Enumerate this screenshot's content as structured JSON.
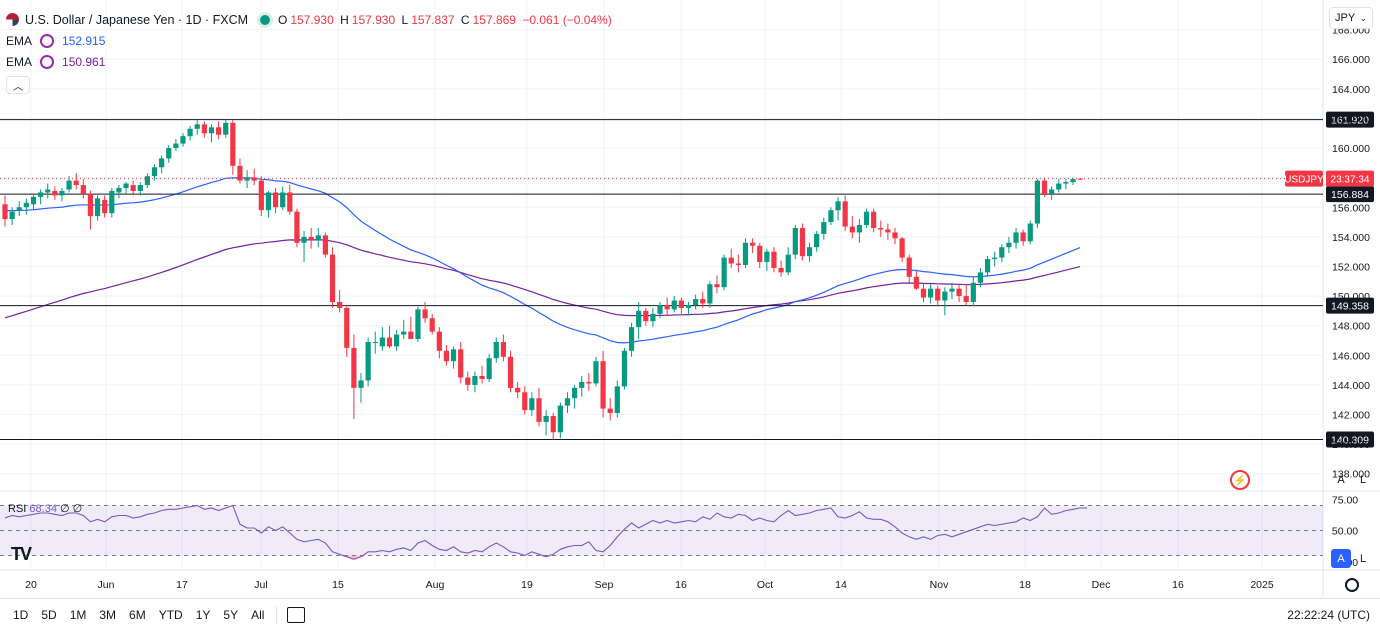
{
  "legend": {
    "symbol": "U.S. Dollar / Japanese Yen · 1D · FXCM",
    "ohlc": {
      "o_label": "O",
      "o": "157.930",
      "h_label": "H",
      "h": "157.930",
      "l_label": "L",
      "l": "157.837",
      "c_label": "C",
      "c": "157.869",
      "change": "−0.061 (−0.04%)"
    },
    "ema1": {
      "label": "EMA",
      "value": "152.915"
    },
    "ema2": {
      "label": "EMA",
      "value": "150.961"
    }
  },
  "toolbar": {
    "currency": "JPY",
    "auto": "A",
    "log": "L"
  },
  "rsi_legend": {
    "label": "RSI",
    "value": "68.34",
    "extra1": "∅",
    "extra2": "∅"
  },
  "bottom": {
    "ranges": [
      "1D",
      "5D",
      "1M",
      "3M",
      "6M",
      "YTD",
      "1Y",
      "5Y",
      "All"
    ],
    "clock": "22:22:24 (UTC)"
  },
  "colors": {
    "up": "#089981",
    "down": "#f23645",
    "ema_fast": "#2962ff",
    "ema_slow": "#7b1fa2",
    "rsi": "#7e57c2"
  },
  "chart_data": {
    "type": "candlestick",
    "y_axis": {
      "ylim": [
        136.9,
        170.0
      ],
      "ticks": [
        138.0,
        140.0,
        142.0,
        144.0,
        146.0,
        148.0,
        150.0,
        152.0,
        154.0,
        156.0,
        158.0,
        160.0,
        162.0,
        164.0,
        166.0,
        168.0
      ]
    },
    "x_ticks": [
      "20",
      "Jun",
      "17",
      "Jul",
      "15",
      "Aug",
      "19",
      "Sep",
      "16",
      "Oct",
      "14",
      "Nov",
      "18",
      "Dec",
      "16",
      "2025"
    ],
    "price_lines": [
      161.92,
      156.884,
      149.358,
      140.309
    ],
    "price_labels": [
      "161.920",
      "156.884",
      "149.358",
      "140.309"
    ],
    "last_label": {
      "symbol": "USDJPY",
      "countdown": "23:37:34",
      "value": 157.869
    },
    "ohlc": [
      [
        156.2,
        156.8,
        154.7,
        155.2
      ],
      [
        155.2,
        156.0,
        154.8,
        155.7
      ],
      [
        155.8,
        156.4,
        155.4,
        156.0
      ],
      [
        156.0,
        156.6,
        155.5,
        156.3
      ],
      [
        156.2,
        156.9,
        155.8,
        156.7
      ],
      [
        156.7,
        157.2,
        156.2,
        157.0
      ],
      [
        157.0,
        157.6,
        156.6,
        157.2
      ],
      [
        157.1,
        157.4,
        156.5,
        156.8
      ],
      [
        156.8,
        157.3,
        156.4,
        157.1
      ],
      [
        157.2,
        158.1,
        157.0,
        157.8
      ],
      [
        157.8,
        158.3,
        157.2,
        157.5
      ],
      [
        157.5,
        157.9,
        156.6,
        156.9
      ],
      [
        156.9,
        157.1,
        154.5,
        155.4
      ],
      [
        155.4,
        156.8,
        155.1,
        156.6
      ],
      [
        156.5,
        156.8,
        155.3,
        155.6
      ],
      [
        155.6,
        157.3,
        155.3,
        157.1
      ],
      [
        157.0,
        157.5,
        156.6,
        157.3
      ],
      [
        157.3,
        157.7,
        156.9,
        157.6
      ],
      [
        157.5,
        157.8,
        156.8,
        157.1
      ],
      [
        157.1,
        157.7,
        156.8,
        157.5
      ],
      [
        157.5,
        158.3,
        157.3,
        158.1
      ],
      [
        158.1,
        158.9,
        157.8,
        158.7
      ],
      [
        158.7,
        159.5,
        158.3,
        159.3
      ],
      [
        159.3,
        160.2,
        159.0,
        160.0
      ],
      [
        160.0,
        160.6,
        159.8,
        160.3
      ],
      [
        160.3,
        161.0,
        160.1,
        160.8
      ],
      [
        160.8,
        161.5,
        160.5,
        161.3
      ],
      [
        161.3,
        161.9,
        160.9,
        161.6
      ],
      [
        161.6,
        161.8,
        160.7,
        161.0
      ],
      [
        161.0,
        161.6,
        160.4,
        161.4
      ],
      [
        161.4,
        161.8,
        160.6,
        160.9
      ],
      [
        160.9,
        161.9,
        160.7,
        161.7
      ],
      [
        161.7,
        161.9,
        158.2,
        158.8
      ],
      [
        158.8,
        159.3,
        157.6,
        157.8
      ],
      [
        157.8,
        158.5,
        157.3,
        158.0
      ],
      [
        158.0,
        158.6,
        157.5,
        157.8
      ],
      [
        157.8,
        158.1,
        155.4,
        155.8
      ],
      [
        155.8,
        157.1,
        155.3,
        157.0
      ],
      [
        157.0,
        157.3,
        155.6,
        156.0
      ],
      [
        156.0,
        157.4,
        155.8,
        157.0
      ],
      [
        157.0,
        157.5,
        155.5,
        155.7
      ],
      [
        155.7,
        155.9,
        153.3,
        153.6
      ],
      [
        153.6,
        154.4,
        152.3,
        154.0
      ],
      [
        154.0,
        154.6,
        153.2,
        153.8
      ],
      [
        153.8,
        154.6,
        153.3,
        154.1
      ],
      [
        154.1,
        154.3,
        152.6,
        152.8
      ],
      [
        152.8,
        153.3,
        149.2,
        149.6
      ],
      [
        149.6,
        150.4,
        148.9,
        149.2
      ],
      [
        149.2,
        149.4,
        145.9,
        146.5
      ],
      [
        146.5,
        147.4,
        141.7,
        143.8
      ],
      [
        143.8,
        144.8,
        142.8,
        144.3
      ],
      [
        144.3,
        147.2,
        143.9,
        146.9
      ],
      [
        146.9,
        147.6,
        146.1,
        146.9
      ],
      [
        146.6,
        147.9,
        146.3,
        147.2
      ],
      [
        147.2,
        148.0,
        146.5,
        146.6
      ],
      [
        146.6,
        147.7,
        146.3,
        147.4
      ],
      [
        147.4,
        148.4,
        147.1,
        147.6
      ],
      [
        147.6,
        148.6,
        147.2,
        147.1
      ],
      [
        147.1,
        149.3,
        146.9,
        149.1
      ],
      [
        149.1,
        149.6,
        148.2,
        148.5
      ],
      [
        148.5,
        148.8,
        147.4,
        147.6
      ],
      [
        147.6,
        147.9,
        145.8,
        146.3
      ],
      [
        146.3,
        146.7,
        145.3,
        145.6
      ],
      [
        145.6,
        146.6,
        145.1,
        146.4
      ],
      [
        146.4,
        146.9,
        144.1,
        144.5
      ],
      [
        144.5,
        144.9,
        143.6,
        144.0
      ],
      [
        144.0,
        144.9,
        143.5,
        144.6
      ],
      [
        144.6,
        145.3,
        144.1,
        144.4
      ],
      [
        144.4,
        146.1,
        144.2,
        145.8
      ],
      [
        145.8,
        147.2,
        145.5,
        146.9
      ],
      [
        146.9,
        147.4,
        145.6,
        145.9
      ],
      [
        145.9,
        146.3,
        143.5,
        143.8
      ],
      [
        143.8,
        144.2,
        143.1,
        143.5
      ],
      [
        143.5,
        143.9,
        142.0,
        142.3
      ],
      [
        142.3,
        143.5,
        141.9,
        143.1
      ],
      [
        143.1,
        143.8,
        141.2,
        141.5
      ],
      [
        141.5,
        142.3,
        140.6,
        141.9
      ],
      [
        141.9,
        142.1,
        140.3,
        140.8
      ],
      [
        140.8,
        142.8,
        140.4,
        142.6
      ],
      [
        142.6,
        143.5,
        142.1,
        143.1
      ],
      [
        143.1,
        144.0,
        142.4,
        143.8
      ],
      [
        143.8,
        144.6,
        143.2,
        144.2
      ],
      [
        144.2,
        144.8,
        143.6,
        144.1
      ],
      [
        144.1,
        145.9,
        143.9,
        145.6
      ],
      [
        145.6,
        146.3,
        141.8,
        142.4
      ],
      [
        142.4,
        143.1,
        141.6,
        142.1
      ],
      [
        142.1,
        144.3,
        141.8,
        143.9
      ],
      [
        143.9,
        146.5,
        143.7,
        146.3
      ],
      [
        146.3,
        148.2,
        145.9,
        147.9
      ],
      [
        147.9,
        149.6,
        147.1,
        149.0
      ],
      [
        149.0,
        149.2,
        148.0,
        148.3
      ],
      [
        148.3,
        149.2,
        147.9,
        148.8
      ],
      [
        148.8,
        149.6,
        148.5,
        149.4
      ],
      [
        149.4,
        149.9,
        148.7,
        149.1
      ],
      [
        149.1,
        150.0,
        148.9,
        149.7
      ],
      [
        149.7,
        149.9,
        148.8,
        149.2
      ],
      [
        149.2,
        149.6,
        148.7,
        149.4
      ],
      [
        149.4,
        150.1,
        149.1,
        149.8
      ],
      [
        149.8,
        150.3,
        149.2,
        149.5
      ],
      [
        149.5,
        151.0,
        149.2,
        150.8
      ],
      [
        150.8,
        151.4,
        150.2,
        150.6
      ],
      [
        150.6,
        152.8,
        150.4,
        152.6
      ],
      [
        152.6,
        153.2,
        151.9,
        152.2
      ],
      [
        152.2,
        152.8,
        151.6,
        152.1
      ],
      [
        152.1,
        153.9,
        151.9,
        153.6
      ],
      [
        153.6,
        153.9,
        152.9,
        153.4
      ],
      [
        153.4,
        153.6,
        151.9,
        152.3
      ],
      [
        152.3,
        153.2,
        151.7,
        153.0
      ],
      [
        153.0,
        153.3,
        151.6,
        151.9
      ],
      [
        151.9,
        152.4,
        151.3,
        151.6
      ],
      [
        151.6,
        153.3,
        151.4,
        152.8
      ],
      [
        152.8,
        154.8,
        152.5,
        154.6
      ],
      [
        154.6,
        154.9,
        152.4,
        152.7
      ],
      [
        152.7,
        153.6,
        152.3,
        153.3
      ],
      [
        153.3,
        154.4,
        153.0,
        154.2
      ],
      [
        154.2,
        155.3,
        153.8,
        155.0
      ],
      [
        155.0,
        156.0,
        154.8,
        155.8
      ],
      [
        155.8,
        156.7,
        155.1,
        156.4
      ],
      [
        156.4,
        156.8,
        154.4,
        154.7
      ],
      [
        154.7,
        155.4,
        153.9,
        154.3
      ],
      [
        154.3,
        155.2,
        153.6,
        154.8
      ],
      [
        154.8,
        155.9,
        154.6,
        155.7
      ],
      [
        155.7,
        155.9,
        154.3,
        154.6
      ],
      [
        154.6,
        155.1,
        154.0,
        154.5
      ],
      [
        154.5,
        154.9,
        153.8,
        154.3
      ],
      [
        154.3,
        154.6,
        153.5,
        153.9
      ],
      [
        153.9,
        154.0,
        152.3,
        152.6
      ],
      [
        152.6,
        152.8,
        150.9,
        151.3
      ],
      [
        151.3,
        151.7,
        150.4,
        150.5
      ],
      [
        150.5,
        150.9,
        149.6,
        149.9
      ],
      [
        149.9,
        150.8,
        149.5,
        150.5
      ],
      [
        150.5,
        150.7,
        149.3,
        149.7
      ],
      [
        149.7,
        150.6,
        148.7,
        150.3
      ],
      [
        150.3,
        150.9,
        149.8,
        150.5
      ],
      [
        150.5,
        150.8,
        149.6,
        150.0
      ],
      [
        150.0,
        150.8,
        149.4,
        149.6
      ],
      [
        149.6,
        151.3,
        149.3,
        150.9
      ],
      [
        150.9,
        151.9,
        150.6,
        151.6
      ],
      [
        151.6,
        152.7,
        151.3,
        152.5
      ],
      [
        152.5,
        153.0,
        152.0,
        152.6
      ],
      [
        152.6,
        153.5,
        152.3,
        153.3
      ],
      [
        153.3,
        154.0,
        152.9,
        153.6
      ],
      [
        153.6,
        154.6,
        153.2,
        154.3
      ],
      [
        154.3,
        154.5,
        153.4,
        153.7
      ],
      [
        153.7,
        155.1,
        153.5,
        154.9
      ],
      [
        154.9,
        157.9,
        154.6,
        157.8
      ],
      [
        157.8,
        158.0,
        156.7,
        156.9
      ],
      [
        156.9,
        157.4,
        156.5,
        157.2
      ],
      [
        157.2,
        157.9,
        157.0,
        157.6
      ],
      [
        157.6,
        157.9,
        157.2,
        157.7
      ],
      [
        157.7,
        158.0,
        157.5,
        157.9
      ],
      [
        157.93,
        157.93,
        157.837,
        157.869
      ]
    ],
    "ema_fast_label": "EMA",
    "ema_slow_label": "EMA",
    "rsi": {
      "ylim": [
        20,
        80
      ],
      "levels": [
        70,
        50,
        30
      ],
      "tick_labels": [
        "75.00",
        "50.00",
        "25.00"
      ],
      "values": [
        60,
        62,
        61,
        62,
        63,
        64,
        64,
        63,
        62,
        64,
        64,
        62,
        57,
        59,
        57,
        61,
        62,
        62,
        60,
        61,
        63,
        64,
        66,
        67,
        67,
        68,
        69,
        70,
        67,
        68,
        66,
        68,
        70,
        55,
        52,
        52,
        48,
        53,
        50,
        53,
        48,
        43,
        41,
        42,
        43,
        40,
        33,
        31,
        29,
        27,
        29,
        33,
        33,
        34,
        33,
        35,
        36,
        34,
        40,
        42,
        38,
        35,
        34,
        37,
        33,
        32,
        34,
        33,
        37,
        40,
        37,
        33,
        32,
        30,
        33,
        31,
        29,
        31,
        35,
        37,
        38,
        38,
        41,
        34,
        33,
        38,
        45,
        51,
        56,
        52,
        55,
        58,
        56,
        58,
        56,
        57,
        58,
        57,
        61,
        59,
        64,
        61,
        60,
        63,
        62,
        58,
        60,
        58,
        57,
        62,
        66,
        62,
        63,
        64,
        66,
        67,
        68,
        61,
        60,
        62,
        65,
        60,
        59,
        59,
        57,
        53,
        48,
        45,
        43,
        45,
        43,
        46,
        47,
        45,
        47,
        49,
        51,
        53,
        55,
        54,
        55,
        56,
        57,
        60,
        58,
        61,
        68,
        63,
        64,
        66,
        67,
        68,
        68
      ]
    }
  }
}
